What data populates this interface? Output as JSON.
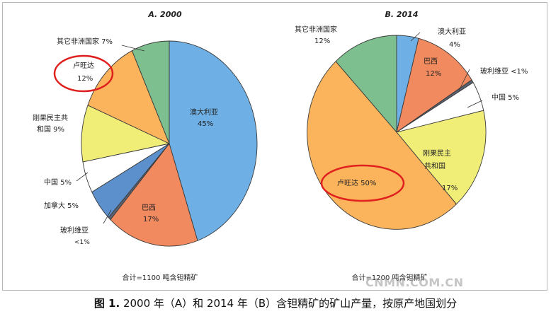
{
  "chart_data": [
    {
      "type": "pie",
      "title": "A. 2000",
      "total_note": "合计=1100 吨含钽精矿",
      "slices": [
        {
          "label": "澳大利亚",
          "pct_label": "45%",
          "value": 45,
          "color": "#6eb0e6"
        },
        {
          "label": "巴西",
          "pct_label": "17%",
          "value": 17,
          "color": "#f28a60"
        },
        {
          "label": "玻利维亚",
          "pct_label": "<1%",
          "value": 0.5,
          "color": "#5a6170"
        },
        {
          "label": "加拿大",
          "pct_label": "5%",
          "value": 5,
          "color": "#5b90cc"
        },
        {
          "label": "中国",
          "pct_label": "5%",
          "value": 5,
          "color": "#ffffff"
        },
        {
          "label": "刚果民主共和国",
          "pct_label": "9%",
          "value": 9,
          "color": "#f1ee78"
        },
        {
          "label": "卢旺达",
          "pct_label": "12%",
          "value": 12,
          "color": "#fbb45c"
        },
        {
          "label": "其它非洲国家",
          "pct_label": "7%",
          "value": 7,
          "color": "#7dbf8e"
        }
      ],
      "labels_text": {
        "australia": "澳大利亚",
        "australia_pct": "45%",
        "brazil": "巴西",
        "brazil_pct": "17%",
        "bolivia": "玻利维亚",
        "bolivia_pct": "<1%",
        "canada": "加拿大 5%",
        "china": "中国 5%",
        "drc_line1": "刚果民主共",
        "drc_line2": "和国 9%",
        "rwanda": "卢旺达",
        "rwanda_pct": "12%",
        "other": "其它非洲国家 7%"
      }
    },
    {
      "type": "pie",
      "title": "B. 2014",
      "total_note": "合计=1200 吨含钽精矿",
      "slices": [
        {
          "label": "澳大利亚",
          "pct_label": "4%",
          "value": 4,
          "color": "#6eb0e6"
        },
        {
          "label": "巴西",
          "pct_label": "12%",
          "value": 12,
          "color": "#f28a60"
        },
        {
          "label": "玻利维亚",
          "pct_label": "<1%",
          "value": 0.5,
          "color": "#5a6170"
        },
        {
          "label": "中国",
          "pct_label": "5%",
          "value": 5,
          "color": "#ffffff"
        },
        {
          "label": "刚果民主共和国",
          "pct_label": "17%",
          "value": 17,
          "color": "#f1ee78"
        },
        {
          "label": "卢旺达",
          "pct_label": "50%",
          "value": 50,
          "color": "#fbb45c"
        },
        {
          "label": "其它非洲国家",
          "pct_label": "12%",
          "value": 12,
          "color": "#7dbf8e"
        }
      ],
      "labels_text": {
        "australia": "澳大利亚",
        "australia_pct": "4%",
        "brazil": "巴西",
        "brazil_pct": "12%",
        "bolivia": "玻利维亚 <1%",
        "china": "中国 5%",
        "drc_line1": "刚果民主",
        "drc_line2": "共和国",
        "drc_pct": "17%",
        "rwanda": "卢旺达 50%",
        "other_line1": "其它非洲国家",
        "other_pct": "12%"
      }
    }
  ],
  "caption": {
    "label": "图 1.",
    "text": "2000 年（A）和 2014 年（B）含钽精矿的矿山产量，按原产地国划分"
  },
  "watermark": "CNMN.COM.CN",
  "highlight_color": "#e0201e"
}
